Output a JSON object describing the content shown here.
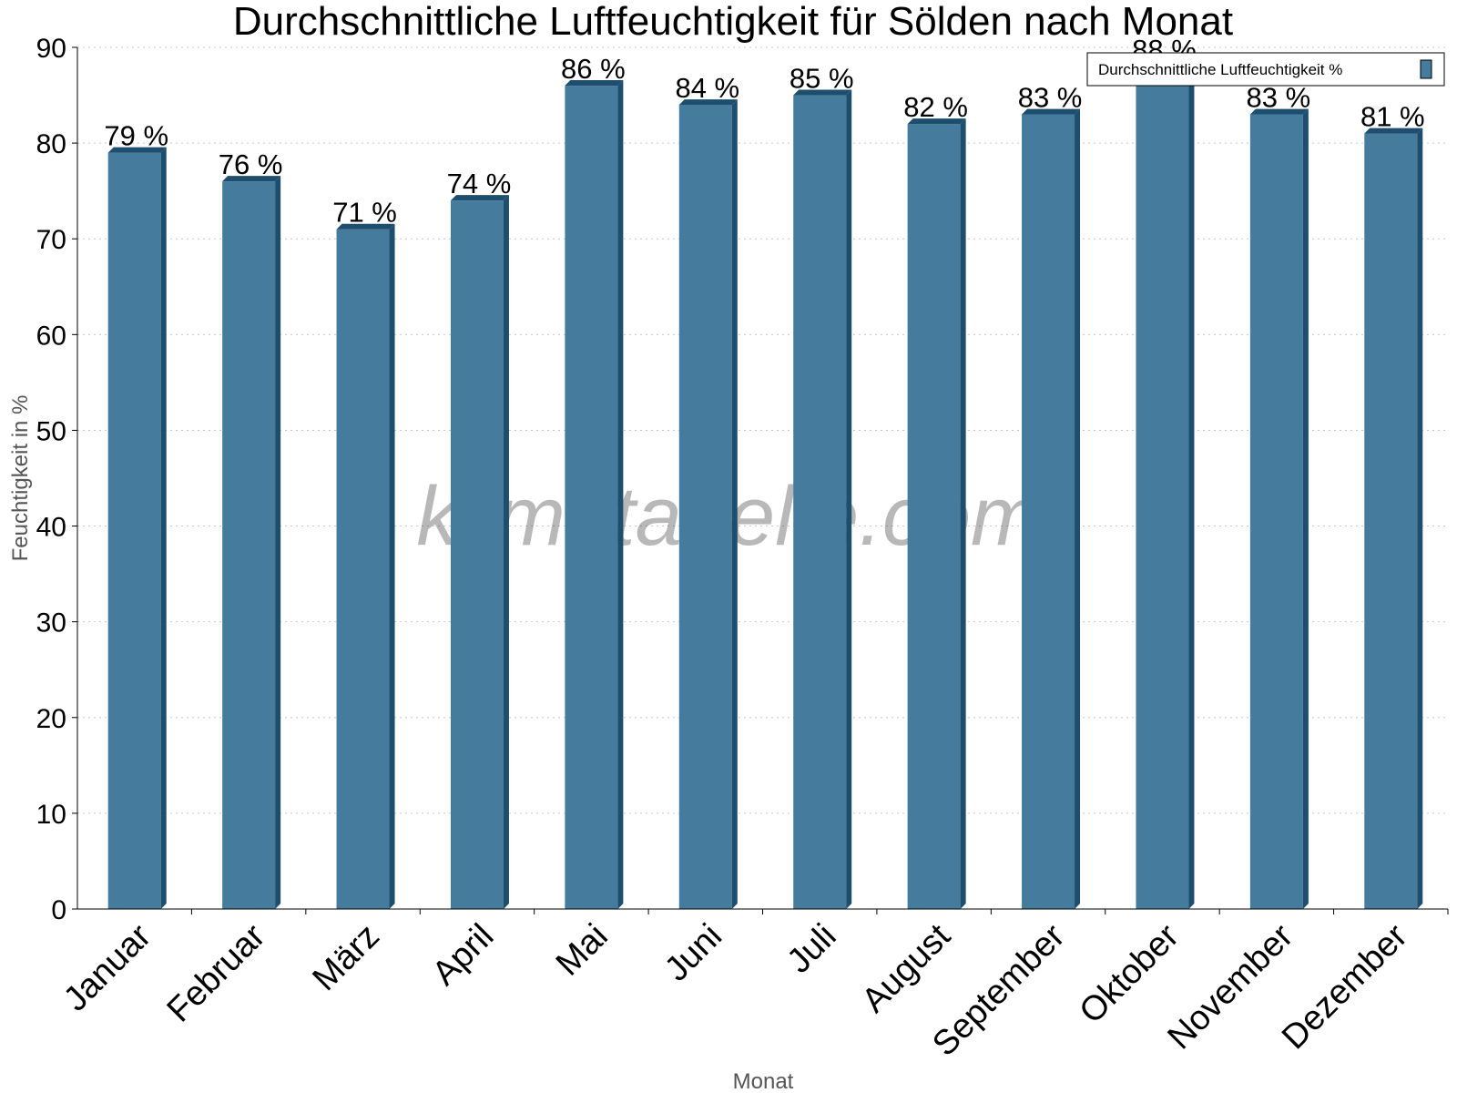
{
  "chart_data": {
    "type": "bar",
    "title": "Durchschnittliche Luftfeuchtigkeit für Sölden nach Monat",
    "xlabel": "Monat",
    "ylabel": "Feuchtigkeit in %",
    "categories": [
      "Januar",
      "Februar",
      "März",
      "April",
      "Mai",
      "Juni",
      "Juli",
      "August",
      "September",
      "Oktober",
      "November",
      "Dezember"
    ],
    "series": [
      {
        "name": "Durchschnittliche Luftfeuchtigkeit %",
        "values": [
          79,
          76,
          71,
          74,
          86,
          84,
          85,
          82,
          83,
          88,
          83,
          81
        ],
        "labels": [
          "79 %",
          "76 %",
          "71 %",
          "74 %",
          "86 %",
          "84 %",
          "85 %",
          "82 %",
          "83 %",
          "88 %",
          "83 %",
          "81 %"
        ],
        "color": "#457b9d",
        "side_color": "#1d4e6e"
      }
    ],
    "ylim": [
      0,
      90
    ],
    "yticks": [
      "0",
      "10",
      "20",
      "30",
      "40",
      "50",
      "60",
      "70",
      "80",
      "90"
    ],
    "grid": true,
    "legend_position": "top-right"
  },
  "watermark": "klimatabelle.com"
}
